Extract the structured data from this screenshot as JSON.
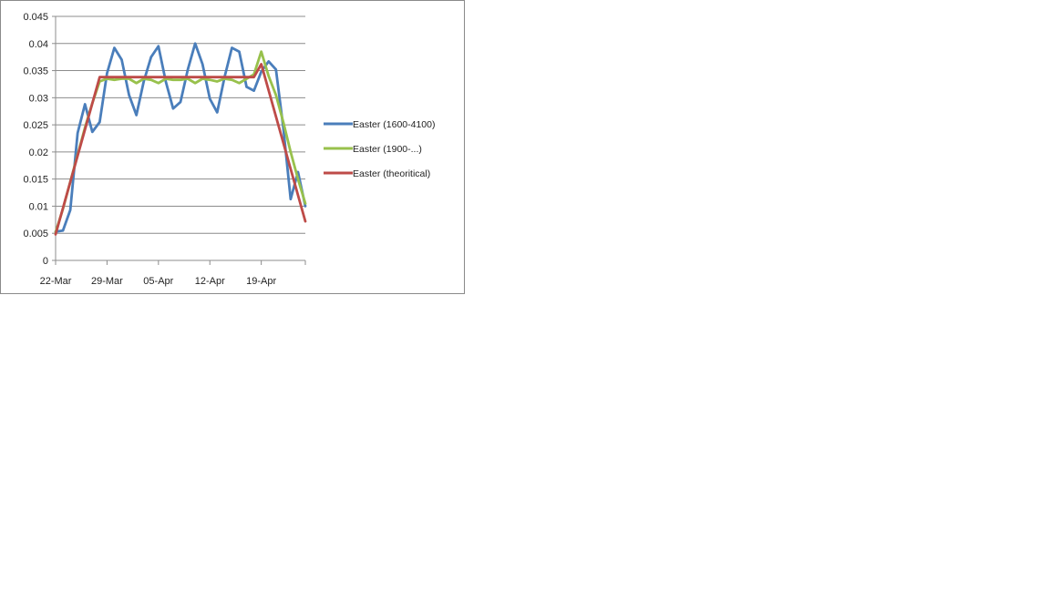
{
  "chart_data": {
    "type": "line",
    "title": "",
    "xlabel": "",
    "ylabel": "",
    "x_start": "22-Mar",
    "x_end": "25-Apr",
    "xlim": [
      "22-Mar",
      "25-Apr"
    ],
    "ylim": [
      0,
      0.045
    ],
    "y_ticks": [
      0,
      0.005,
      0.01,
      0.015,
      0.02,
      0.025,
      0.03,
      0.035,
      0.04,
      0.045
    ],
    "y_tick_labels": [
      "0",
      "0.005",
      "0.01",
      "0.015",
      "0.02",
      "0.025",
      "0.03",
      "0.035",
      "0.04",
      "0.045"
    ],
    "x_tick_labels": [
      {
        "date": "22-Mar",
        "label": "22-Mar"
      },
      {
        "date": "29-Mar",
        "label": "29-Mar"
      },
      {
        "date": "05-Apr",
        "label": "05-Apr"
      },
      {
        "date": "12-Apr",
        "label": "12-Apr"
      },
      {
        "date": "19-Apr",
        "label": "19-Apr"
      }
    ],
    "grid": "horizontal",
    "legend": "right",
    "series": [
      {
        "name": "Easter (1600-4100)",
        "color": "#4a7ebb",
        "points": [
          [
            "22-Mar",
            0.0053
          ],
          [
            "23-Mar",
            0.0055
          ],
          [
            "24-Mar",
            0.0093
          ],
          [
            "25-Mar",
            0.0235
          ],
          [
            "26-Mar",
            0.0288
          ],
          [
            "27-Mar",
            0.0237
          ],
          [
            "28-Mar",
            0.0255
          ],
          [
            "29-Mar",
            0.0345
          ],
          [
            "30-Mar",
            0.0392
          ],
          [
            "31-Mar",
            0.037
          ],
          [
            "01-Apr",
            0.0305
          ],
          [
            "02-Apr",
            0.0268
          ],
          [
            "03-Apr",
            0.033
          ],
          [
            "04-Apr",
            0.0375
          ],
          [
            "05-Apr",
            0.0395
          ],
          [
            "06-Apr",
            0.033
          ],
          [
            "07-Apr",
            0.028
          ],
          [
            "08-Apr",
            0.0292
          ],
          [
            "09-Apr",
            0.0352
          ],
          [
            "10-Apr",
            0.04
          ],
          [
            "11-Apr",
            0.0362
          ],
          [
            "12-Apr",
            0.0298
          ],
          [
            "13-Apr",
            0.0273
          ],
          [
            "14-Apr",
            0.0338
          ],
          [
            "15-Apr",
            0.0392
          ],
          [
            "16-Apr",
            0.0385
          ],
          [
            "17-Apr",
            0.032
          ],
          [
            "18-Apr",
            0.0313
          ],
          [
            "19-Apr",
            0.0348
          ],
          [
            "20-Apr",
            0.0367
          ],
          [
            "21-Apr",
            0.0352
          ],
          [
            "22-Apr",
            0.0245
          ],
          [
            "23-Apr",
            0.0113
          ],
          [
            "24-Apr",
            0.0163
          ],
          [
            "25-Apr",
            0.01
          ]
        ]
      },
      {
        "name": "Easter (1900-...)",
        "color": "#98c14c",
        "points": [
          [
            "22-Mar",
            0.0052
          ],
          [
            "23-Mar",
            0.0095
          ],
          [
            "24-Mar",
            0.0145
          ],
          [
            "25-Mar",
            0.0195
          ],
          [
            "26-Mar",
            0.0245
          ],
          [
            "27-Mar",
            0.029
          ],
          [
            "28-Mar",
            0.033
          ],
          [
            "29-Mar",
            0.0335
          ],
          [
            "30-Mar",
            0.0333
          ],
          [
            "31-Mar",
            0.0335
          ],
          [
            "01-Apr",
            0.0335
          ],
          [
            "02-Apr",
            0.0327
          ],
          [
            "03-Apr",
            0.0335
          ],
          [
            "04-Apr",
            0.0333
          ],
          [
            "05-Apr",
            0.0327
          ],
          [
            "06-Apr",
            0.0335
          ],
          [
            "07-Apr",
            0.0333
          ],
          [
            "08-Apr",
            0.0333
          ],
          [
            "09-Apr",
            0.0335
          ],
          [
            "10-Apr",
            0.0327
          ],
          [
            "11-Apr",
            0.0335
          ],
          [
            "12-Apr",
            0.0333
          ],
          [
            "13-Apr",
            0.033
          ],
          [
            "14-Apr",
            0.0335
          ],
          [
            "15-Apr",
            0.0333
          ],
          [
            "16-Apr",
            0.0327
          ],
          [
            "17-Apr",
            0.0335
          ],
          [
            "18-Apr",
            0.0343
          ],
          [
            "19-Apr",
            0.0385
          ],
          [
            "20-Apr",
            0.034
          ],
          [
            "21-Apr",
            0.0305
          ],
          [
            "22-Apr",
            0.0255
          ],
          [
            "23-Apr",
            0.02
          ],
          [
            "24-Apr",
            0.015
          ],
          [
            "25-Apr",
            0.0105
          ]
        ]
      },
      {
        "name": "Easter (theoritical)",
        "color": "#be4b48",
        "points": [
          [
            "22-Mar",
            0.0048
          ],
          [
            "28-Mar",
            0.0338
          ],
          [
            "18-Apr",
            0.0338
          ],
          [
            "19-Apr",
            0.0362
          ],
          [
            "25-Apr",
            0.0072
          ]
        ]
      }
    ]
  }
}
